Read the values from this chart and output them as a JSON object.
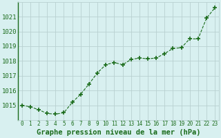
{
  "x": [
    0,
    1,
    2,
    3,
    4,
    5,
    6,
    7,
    8,
    9,
    10,
    11,
    12,
    13,
    14,
    15,
    16,
    17,
    18,
    19,
    20,
    21,
    22,
    23
  ],
  "y": [
    1015.0,
    1014.9,
    1014.7,
    1014.45,
    1014.4,
    1014.5,
    1015.2,
    1015.75,
    1016.45,
    1017.2,
    1017.75,
    1017.9,
    1017.75,
    1018.1,
    1018.2,
    1018.15,
    1018.2,
    1018.5,
    1018.85,
    1018.9,
    1019.5,
    1019.5,
    1020.9,
    1021.6
  ],
  "line_color": "#1a6b1a",
  "marker": "+",
  "marker_size": 4,
  "marker_lw": 1.2,
  "background_color": "#d8f0f0",
  "grid_color": "#b8d0d0",
  "xlabel": "Graphe pression niveau de la mer (hPa)",
  "xlabel_fontsize": 7.5,
  "ylabel_ticks": [
    1015,
    1016,
    1017,
    1018,
    1019,
    1020,
    1021
  ],
  "ylim": [
    1014.0,
    1022.0
  ],
  "xlim": [
    -0.5,
    23.5
  ],
  "tick_color": "#1a6b1a",
  "tick_fontsize": 6.5,
  "xtick_labels": [
    "0",
    "1",
    "2",
    "3",
    "4",
    "5",
    "6",
    "7",
    "8",
    "9",
    "10",
    "11",
    "12",
    "13",
    "14",
    "15",
    "16",
    "17",
    "18",
    "19",
    "20",
    "21",
    "22",
    "23"
  ],
  "figsize": [
    3.2,
    2.0
  ],
  "dpi": 100
}
